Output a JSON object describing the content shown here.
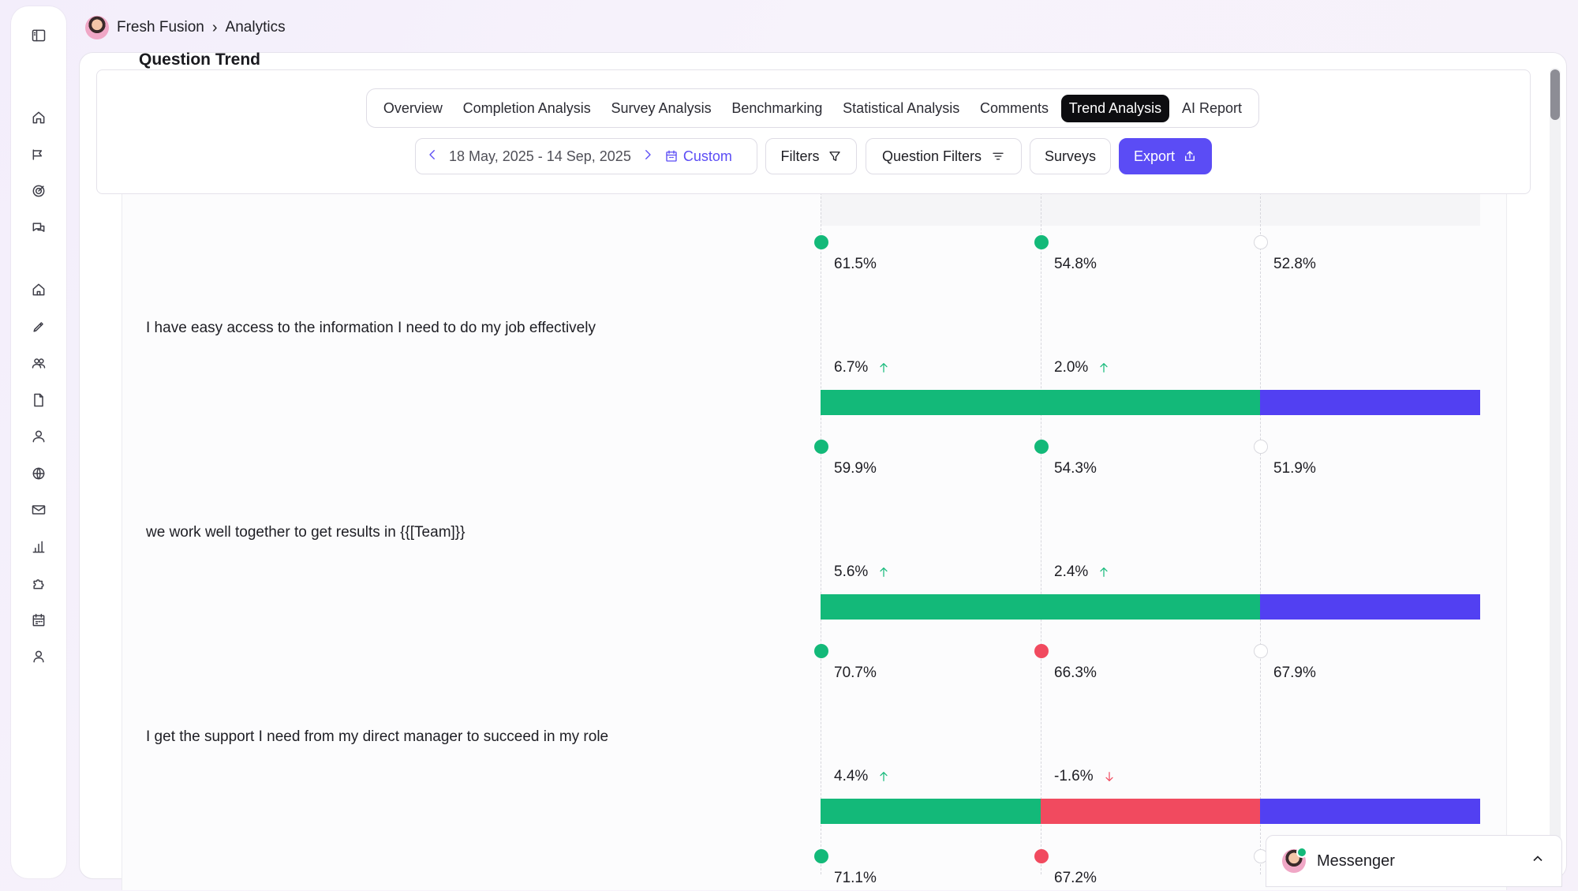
{
  "breadcrumb": {
    "org": "Fresh Fusion",
    "page": "Analytics"
  },
  "section_title": "Question Trend",
  "tabs": [
    {
      "label": "Overview",
      "active": false
    },
    {
      "label": "Completion Analysis",
      "active": false
    },
    {
      "label": "Survey Analysis",
      "active": false
    },
    {
      "label": "Benchmarking",
      "active": false
    },
    {
      "label": "Statistical Analysis",
      "active": false
    },
    {
      "label": "Comments",
      "active": false
    },
    {
      "label": "Trend Analysis",
      "active": true
    },
    {
      "label": "AI Report",
      "active": false
    }
  ],
  "controls": {
    "date_range": "18 May, 2025 - 14 Sep, 2025",
    "custom_label": "Custom",
    "filters_label": "Filters",
    "question_filters_label": "Question Filters",
    "surveys_label": "Surveys",
    "export_label": "Export"
  },
  "questions": [
    {
      "text": "I have easy access to the information I need to do my job effectively",
      "scores": [
        "61.5%",
        "54.8%",
        "52.8%"
      ],
      "dots": [
        "green",
        "green",
        "empty"
      ],
      "deltas": [
        {
          "value": "6.7%",
          "dir": "up"
        },
        {
          "value": "2.0%",
          "dir": "up"
        }
      ],
      "segments": [
        "green",
        "green",
        "blue"
      ]
    },
    {
      "text": "we work well together to get results in {{[Team]}}",
      "scores": [
        "59.9%",
        "54.3%",
        "51.9%"
      ],
      "dots": [
        "green",
        "green",
        "empty"
      ],
      "deltas": [
        {
          "value": "5.6%",
          "dir": "up"
        },
        {
          "value": "2.4%",
          "dir": "up"
        }
      ],
      "segments": [
        "green",
        "green",
        "blue"
      ]
    },
    {
      "text": "I get the support I need from my direct manager to succeed in my role",
      "scores": [
        "70.7%",
        "66.3%",
        "67.9%"
      ],
      "dots": [
        "green",
        "red",
        "empty"
      ],
      "deltas": [
        {
          "value": "4.4%",
          "dir": "up"
        },
        {
          "value": "-1.6%",
          "dir": "down"
        }
      ],
      "segments": [
        "green",
        "red",
        "blue"
      ]
    }
  ],
  "partial_row": {
    "scores": [
      "71.1%",
      "67.2%"
    ],
    "dots": [
      "green",
      "red",
      "empty"
    ]
  },
  "colors": {
    "green": "#13b979",
    "red": "#f14a5f",
    "blue": "#5240f2",
    "accent": "#5b4cf5"
  },
  "messenger": {
    "label": "Messenger"
  },
  "sidebar_icons": [
    "sidebar-toggle-icon",
    "home-icon",
    "megaphone-icon",
    "target-icon",
    "chat-icon",
    "home-icon",
    "pencil-icon",
    "team-icon",
    "document-icon",
    "user-icon",
    "globe-icon",
    "mail-icon",
    "bar-chart-icon",
    "puzzle-icon",
    "calendar-icon",
    "person-icon"
  ]
}
